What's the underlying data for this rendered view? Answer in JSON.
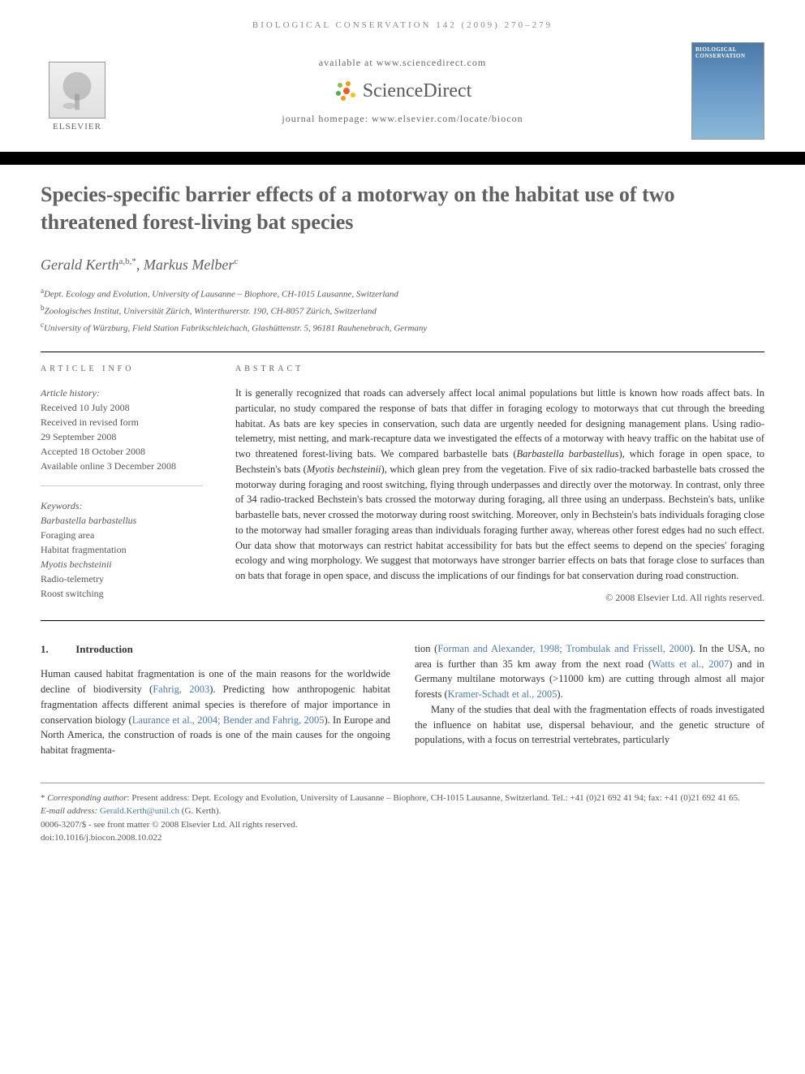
{
  "header": {
    "journal_ref": "BIOLOGICAL CONSERVATION 142 (2009) 270–279",
    "available_text": "available at www.sciencedirect.com",
    "sciencedirect_label": "ScienceDirect",
    "homepage_text": "journal homepage: www.elsevier.com/locate/biocon",
    "elsevier_label": "ELSEVIER",
    "cover_title": "BIOLOGICAL CONSERVATION"
  },
  "article": {
    "title": "Species-specific barrier effects of a motorway on the habitat use of two threatened forest-living bat species",
    "authors_html": "Gerald Kerth<sup>a,b,*</sup>, Markus Melber<sup>c</sup>",
    "affiliations": [
      {
        "sup": "a",
        "text": "Dept. Ecology and Evolution, University of Lausanne – Biophore, CH-1015 Lausanne, Switzerland"
      },
      {
        "sup": "b",
        "text": "Zoologisches Institut, Universität Zürich, Winterthurerstr. 190, CH-8057 Zürich, Switzerland"
      },
      {
        "sup": "c",
        "text": "University of Würzburg, Field Station Fabrikschleichach, Glashüttenstr. 5, 96181 Rauhenebrach, Germany"
      }
    ]
  },
  "info": {
    "heading": "ARTICLE INFO",
    "history_label": "Article history:",
    "history": [
      "Received 10 July 2008",
      "Received in revised form",
      "29 September 2008",
      "Accepted 18 October 2008",
      "Available online 3 December 2008"
    ],
    "keywords_label": "Keywords:",
    "keywords": [
      {
        "text": "Barbastella barbastellus",
        "italic": true
      },
      {
        "text": "Foraging area",
        "italic": false
      },
      {
        "text": "Habitat fragmentation",
        "italic": false
      },
      {
        "text": "Myotis bechsteinii",
        "italic": true
      },
      {
        "text": "Radio-telemetry",
        "italic": false
      },
      {
        "text": "Roost switching",
        "italic": false
      }
    ]
  },
  "abstract": {
    "heading": "ABSTRACT",
    "text": "It is generally recognized that roads can adversely affect local animal populations but little is known how roads affect bats. In particular, no study compared the response of bats that differ in foraging ecology to motorways that cut through the breeding habitat. As bats are key species in conservation, such data are urgently needed for designing management plans. Using radio-telemetry, mist netting, and mark-recapture data we investigated the effects of a motorway with heavy traffic on the habitat use of two threatened forest-living bats. We compared barbastelle bats (Barbastella barbastellus), which forage in open space, to Bechstein's bats (Myotis bechsteinii), which glean prey from the vegetation. Five of six radio-tracked barbastelle bats crossed the motorway during foraging and roost switching, flying through underpasses and directly over the motorway. In contrast, only three of 34 radio-tracked Bechstein's bats crossed the motorway during foraging, all three using an underpass. Bechstein's bats, unlike barbastelle bats, never crossed the motorway during roost switching. Moreover, only in Bechstein's bats individuals foraging close to the motorway had smaller foraging areas than individuals foraging further away, whereas other forest edges had no such effect. Our data show that motorways can restrict habitat accessibility for bats but the effect seems to depend on the species' foraging ecology and wing morphology. We suggest that motorways have stronger barrier effects on bats that forage close to surfaces than on bats that forage in open space, and discuss the implications of our findings for bat conservation during road construction.",
    "copyright": "© 2008 Elsevier Ltd. All rights reserved."
  },
  "body": {
    "section_num": "1.",
    "section_title": "Introduction",
    "col1": "Human caused habitat fragmentation is one of the main reasons for the worldwide decline of biodiversity (Fahrig, 2003). Predicting how anthropogenic habitat fragmentation affects different animal species is therefore of major importance in conservation biology (Laurance et al., 2004; Bender and Fahrig, 2005). In Europe and North America, the construction of roads is one of the main causes for the ongoing habitat fragmenta-",
    "col2": "tion (Forman and Alexander, 1998; Trombulak and Frissell, 2000). In the USA, no area is further than 35 km away from the next road (Watts et al., 2007) and in Germany multilane motorways (>11000 km) are cutting through almost all major forests (Kramer-Schadt et al., 2005).",
    "col2_p2": "Many of the studies that deal with the fragmentation effects of roads investigated the influence on habitat use, dispersal behaviour, and the genetic structure of populations, with a focus on terrestrial vertebrates, particularly"
  },
  "footer": {
    "corresponding": "* Corresponding author: Present address: Dept. Ecology and Evolution, University of Lausanne – Biophore, CH-1015 Lausanne, Switzerland. Tel.: +41 (0)21 692 41 94; fax: +41 (0)21 692 41 65.",
    "email_label": "E-mail address:",
    "email": "Gerald.Kerth@unil.ch",
    "email_suffix": "(G. Kerth).",
    "issn": "0006-3207/$ - see front matter © 2008 Elsevier Ltd. All rights reserved.",
    "doi": "doi:10.1016/j.biocon.2008.10.022"
  },
  "colors": {
    "link": "#4a7ba8",
    "heading_gray": "#606060",
    "text": "#333333",
    "muted": "#666666"
  }
}
